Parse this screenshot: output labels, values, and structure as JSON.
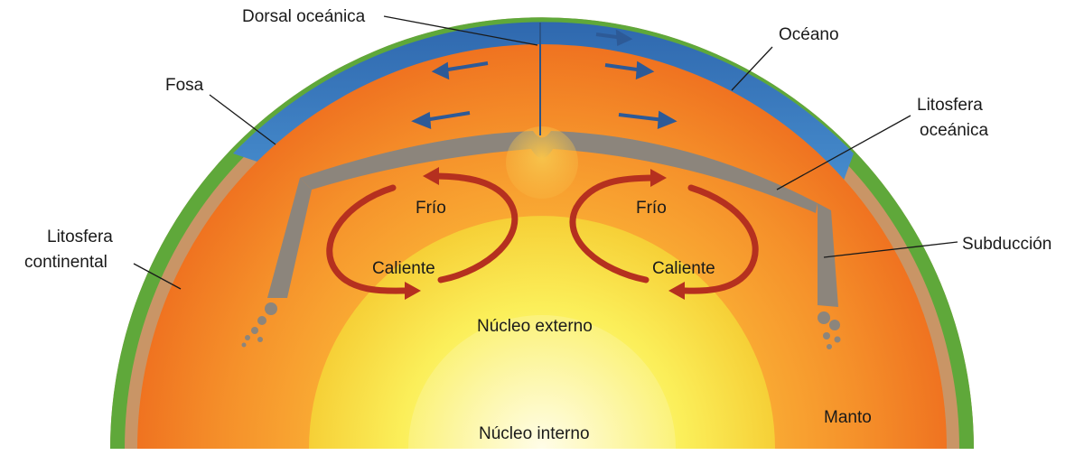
{
  "labels": {
    "dorsal": "Dorsal oceánica",
    "oceano": "Océano",
    "fosa": "Fosa",
    "lito_oceanica_1": "Litosfera",
    "lito_oceanica_2": "oceánica",
    "lito_continental_1": "Litosfera",
    "lito_continental_2": "continental",
    "subduccion": "Subducción",
    "frio_left": "Frío",
    "frio_right": "Frío",
    "caliente_left": "Caliente",
    "caliente_right": "Caliente",
    "nucleo_externo": "Núcleo externo",
    "nucleo_interno": "Núcleo interno",
    "manto": "Manto"
  },
  "colors": {
    "ocean": "#3f7fc4",
    "crust": "#8c857c",
    "continental": "#c99566",
    "mantle": "#f07a22",
    "outer_core": "#f7d83a",
    "inner_core": "#fbf27a",
    "arrow": "#b5301f",
    "land": "#5fa83a"
  }
}
